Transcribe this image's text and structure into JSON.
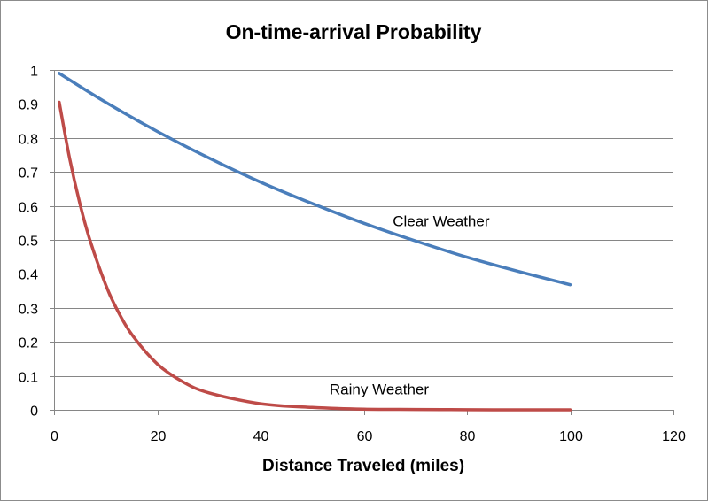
{
  "chart_data": {
    "type": "line",
    "title": "On-time-arrival Probability",
    "xlabel": "Distance Traveled (miles)",
    "ylabel": "",
    "xlim": [
      0,
      120
    ],
    "ylim": [
      0,
      1
    ],
    "xticks": [
      0,
      20,
      40,
      60,
      80,
      100,
      120
    ],
    "yticks": [
      0,
      0.1,
      0.2,
      0.3,
      0.4,
      0.5,
      0.6,
      0.7,
      0.8,
      0.9,
      1
    ],
    "grid": "horizontal",
    "legend": "none",
    "series": [
      {
        "name": "Clear Weather",
        "color": "#4a7ebb",
        "x": [
          1,
          10,
          20,
          30,
          40,
          50,
          60,
          70,
          80,
          90,
          100
        ],
        "y": [
          0.99,
          0.905,
          0.819,
          0.741,
          0.67,
          0.607,
          0.549,
          0.497,
          0.449,
          0.407,
          0.368
        ]
      },
      {
        "name": "Rainy Weather",
        "color": "#be4b48",
        "x": [
          1,
          3,
          5,
          7,
          10,
          12,
          15,
          20,
          25,
          30,
          40,
          50,
          60,
          70,
          80,
          90,
          100
        ],
        "y": [
          0.905,
          0.741,
          0.607,
          0.497,
          0.368,
          0.301,
          0.223,
          0.135,
          0.082,
          0.05,
          0.018,
          0.007,
          0.002,
          0.001,
          0.0003,
          0.0001,
          5e-05
        ]
      }
    ],
    "annotations": [
      {
        "text": "Clear Weather",
        "x": 75,
        "y": 0.54
      },
      {
        "text": "Rainy Weather",
        "x": 63,
        "y": 0.045
      }
    ]
  }
}
